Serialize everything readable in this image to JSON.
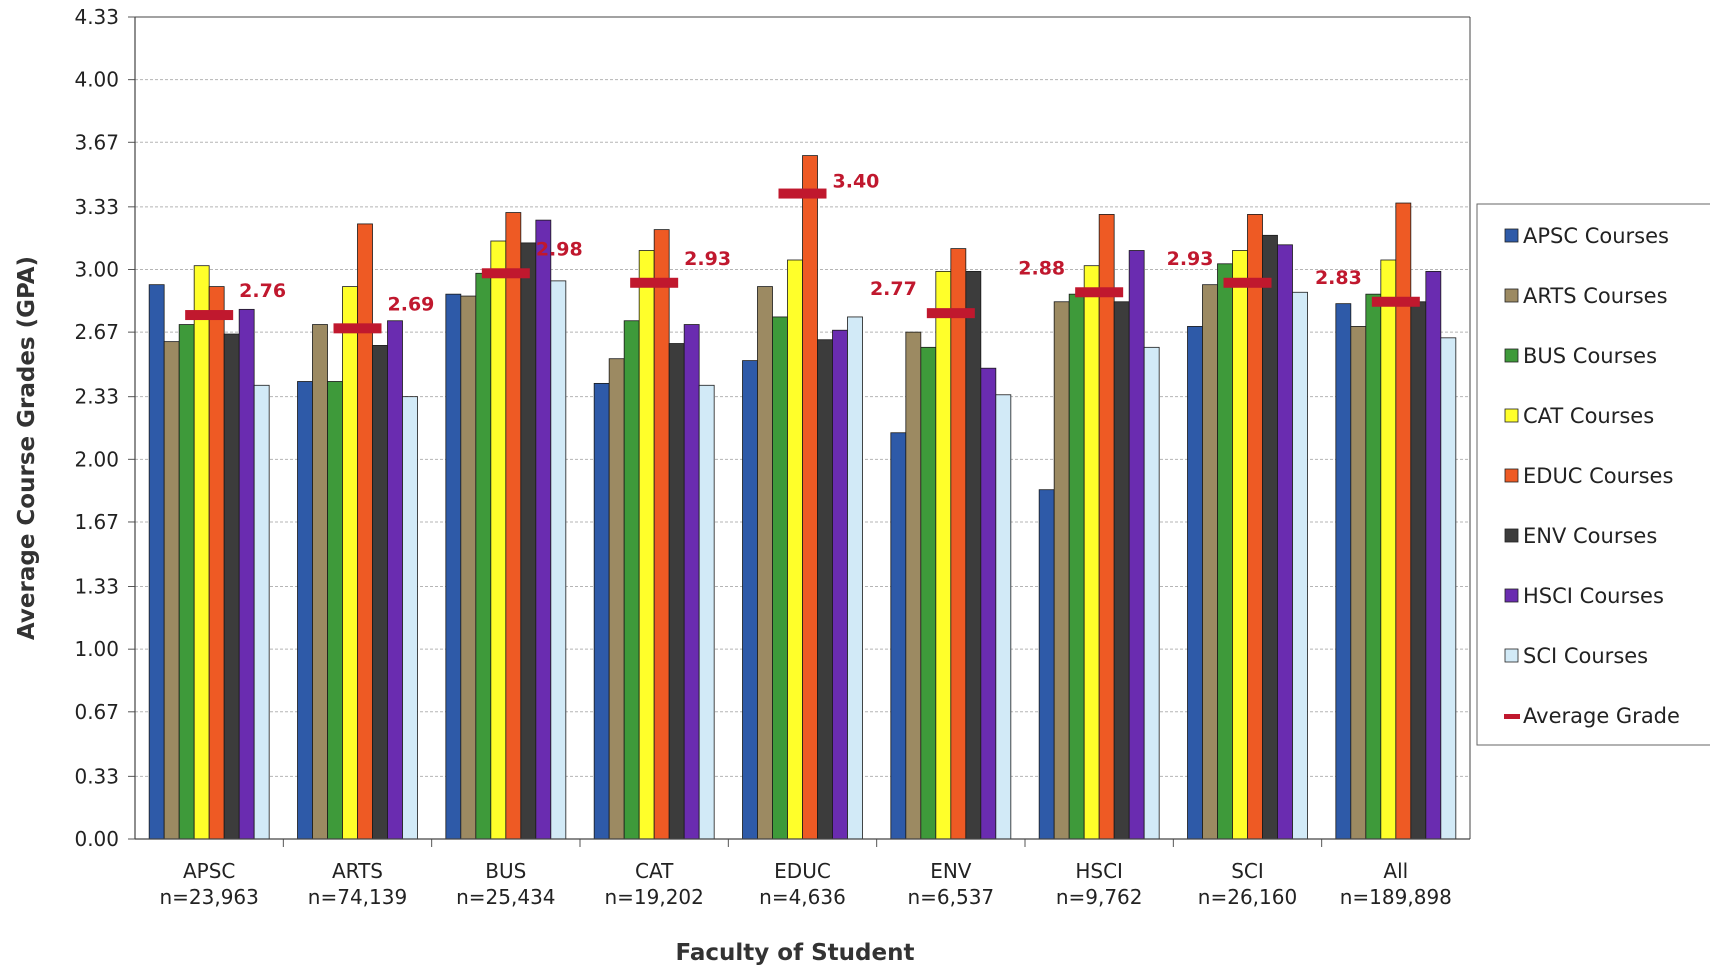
{
  "chart_data": {
    "type": "bar",
    "xlabel": "Faculty of Student",
    "ylabel": "Average Course Grades (GPA)",
    "ylim": [
      0,
      4.33
    ],
    "yticks": [
      "0.00",
      "0.33",
      "0.67",
      "1.00",
      "1.33",
      "1.67",
      "2.00",
      "2.33",
      "2.67",
      "3.00",
      "3.33",
      "3.67",
      "4.00",
      "4.33"
    ],
    "categories": [
      "APSC",
      "ARTS",
      "BUS",
      "CAT",
      "EDUC",
      "ENV",
      "HSCI",
      "SCI",
      "All"
    ],
    "category_counts": [
      "n=23,963",
      "n=74,139",
      "n=25,434",
      "n=19,202",
      "n=4,636",
      "n=6,537",
      "n=9,762",
      "n=26,160",
      "n=189,898"
    ],
    "grid": true,
    "legend_position": "right",
    "series": [
      {
        "name": "APSC Courses",
        "color": "#2e5aa8",
        "values": [
          2.92,
          2.41,
          2.87,
          2.4,
          2.52,
          2.14,
          1.84,
          2.7,
          2.82
        ]
      },
      {
        "name": "ARTS Courses",
        "color": "#9c8a62",
        "values": [
          2.62,
          2.71,
          2.86,
          2.53,
          2.91,
          2.67,
          2.83,
          2.92,
          2.7
        ]
      },
      {
        "name": "BUS Courses",
        "color": "#3e9a3a",
        "values": [
          2.71,
          2.41,
          2.98,
          2.73,
          2.75,
          2.59,
          2.87,
          3.03,
          2.87
        ]
      },
      {
        "name": "CAT Courses",
        "color": "#ffff2a",
        "values": [
          3.02,
          2.91,
          3.15,
          3.1,
          3.05,
          2.99,
          3.02,
          3.1,
          3.05
        ]
      },
      {
        "name": "EDUC Courses",
        "color": "#ee5a24",
        "values": [
          2.91,
          3.24,
          3.3,
          3.21,
          3.6,
          3.11,
          3.29,
          3.29,
          3.35
        ]
      },
      {
        "name": "ENV Courses",
        "color": "#3c3c3c",
        "values": [
          2.66,
          2.6,
          3.14,
          2.61,
          2.63,
          2.99,
          2.83,
          3.18,
          2.83
        ]
      },
      {
        "name": "HSCI Courses",
        "color": "#6a2cb0",
        "values": [
          2.79,
          2.73,
          3.26,
          2.71,
          2.68,
          2.48,
          3.1,
          3.13,
          2.99
        ]
      },
      {
        "name": "SCI Courses",
        "color": "#d2eaf7",
        "values": [
          2.39,
          2.33,
          2.94,
          2.39,
          2.75,
          2.34,
          2.59,
          2.88,
          2.64
        ]
      }
    ],
    "average": {
      "name": "Average Grade",
      "color": "#c0182e",
      "values": [
        2.76,
        2.69,
        2.98,
        2.93,
        3.4,
        2.77,
        2.88,
        2.93,
        2.83
      ],
      "labels": [
        "2.76",
        "2.69",
        "2.98",
        "2.93",
        "3.40",
        "2.77",
        "2.88",
        "2.93",
        "2.83"
      ]
    }
  }
}
